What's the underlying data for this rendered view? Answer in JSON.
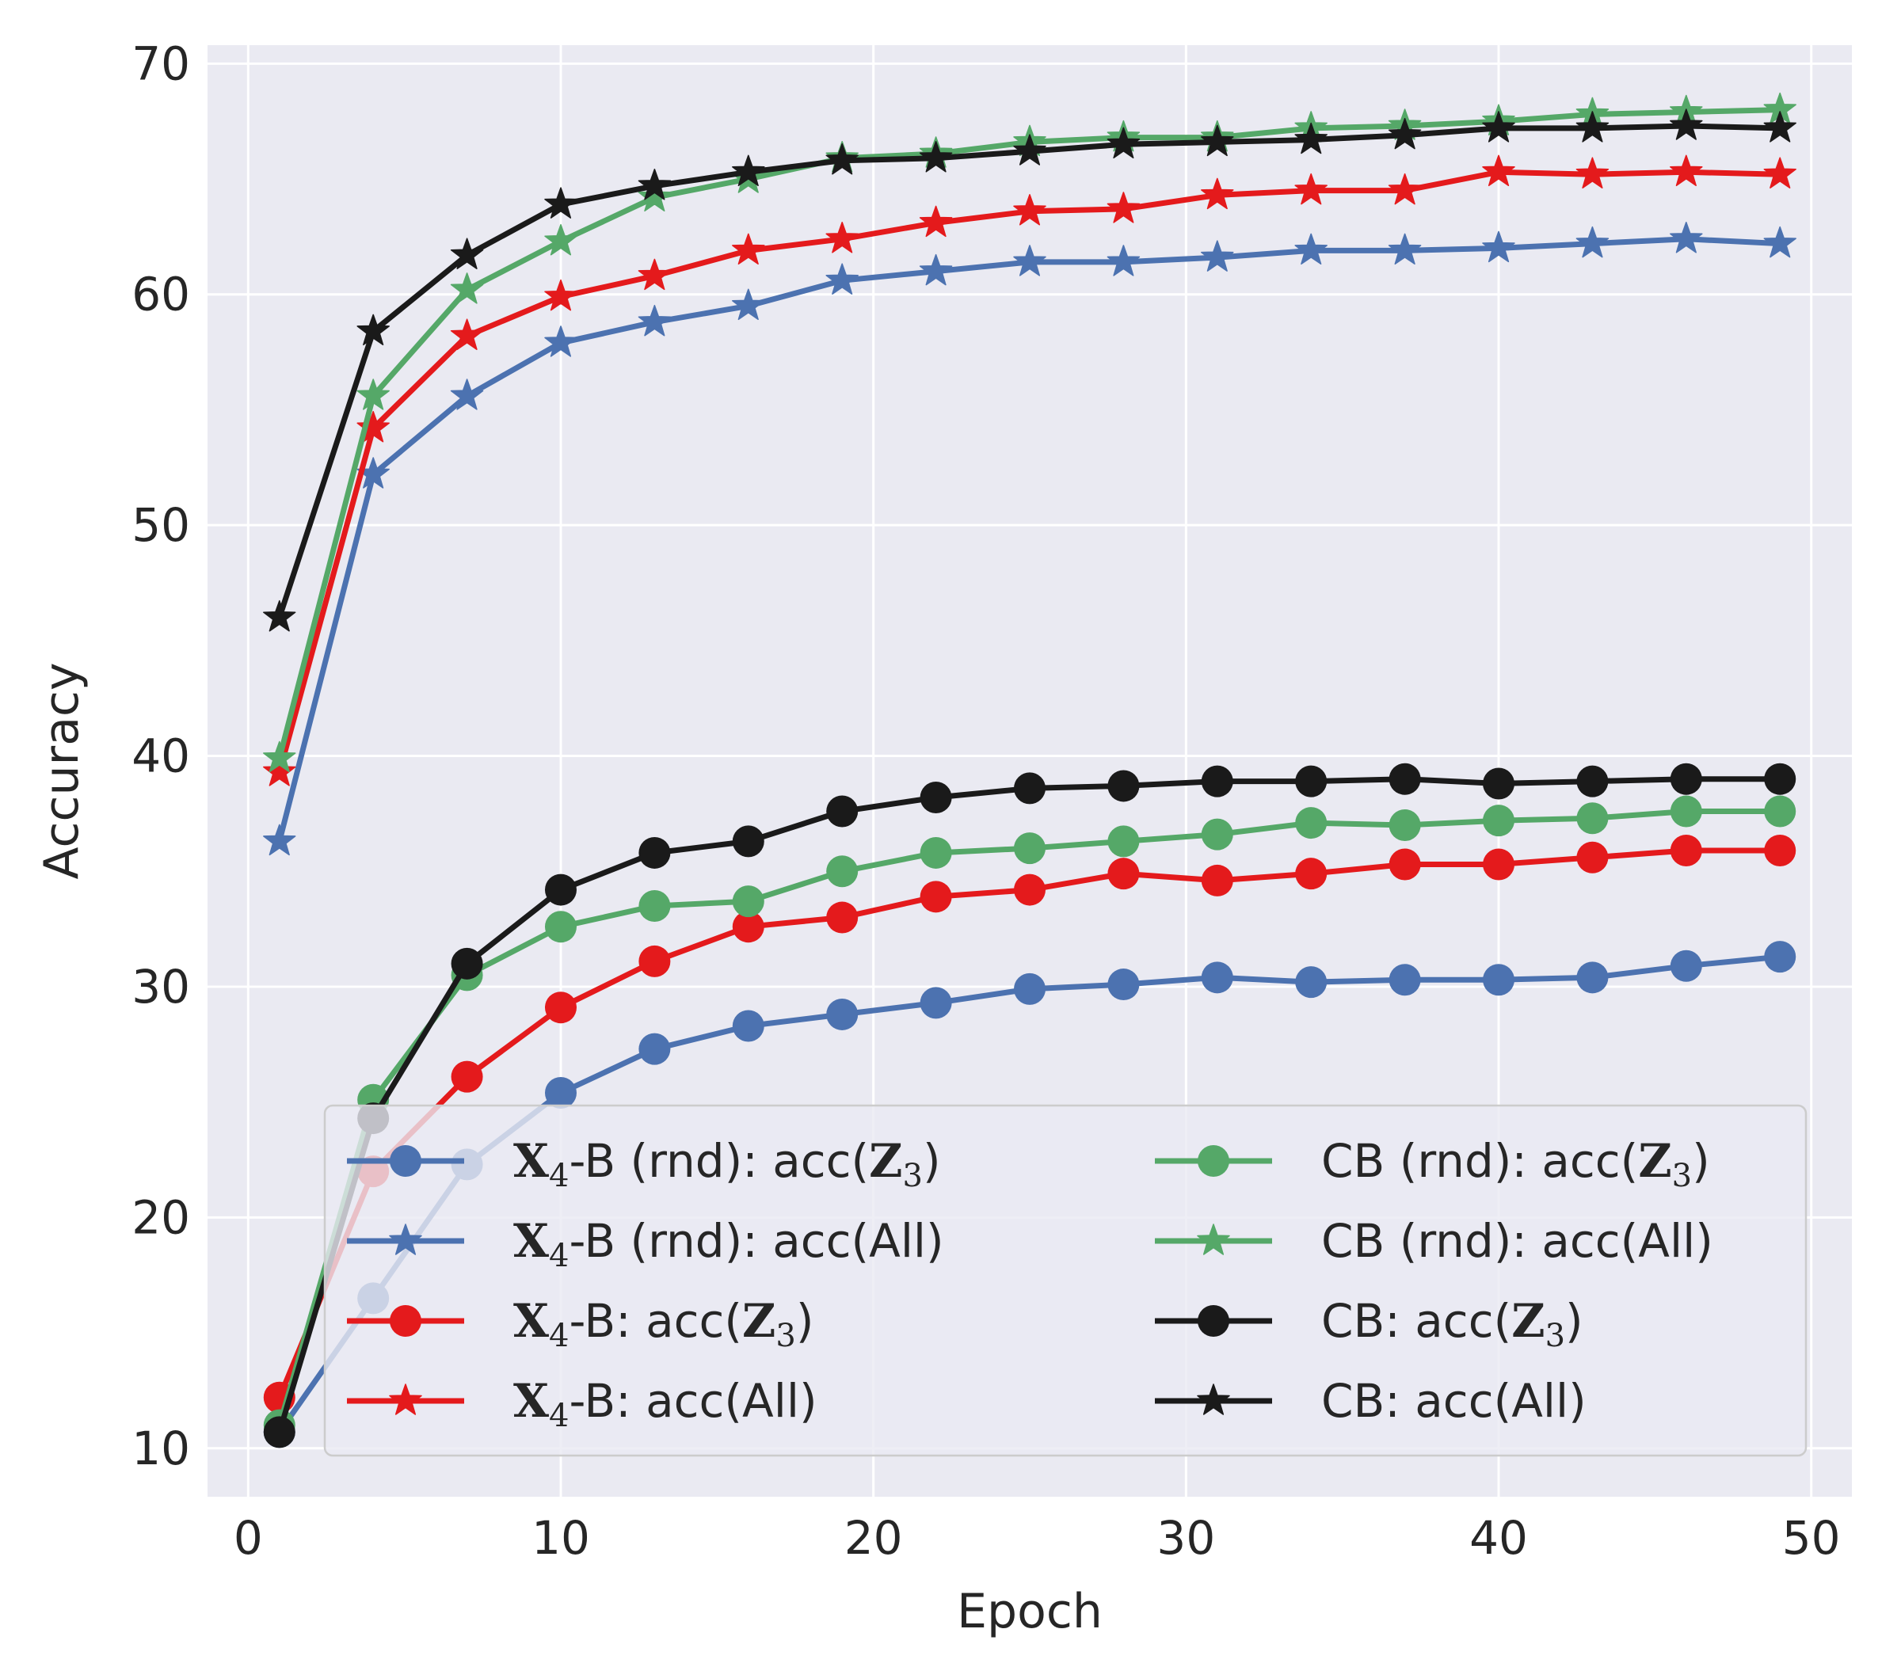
{
  "chart_data": {
    "type": "line",
    "title": "",
    "xlabel": "Epoch",
    "ylabel": "Accuracy",
    "xlim": [
      -1.3,
      51.3
    ],
    "ylim": [
      7.9,
      70.8
    ],
    "xticks": [
      0,
      10,
      20,
      30,
      40,
      50
    ],
    "yticks": [
      10,
      20,
      30,
      40,
      50,
      60,
      70
    ],
    "grid": true,
    "legend": {
      "position": "bottom-right",
      "columns": 2
    },
    "x": [
      1,
      4,
      7,
      10,
      13,
      16,
      19,
      22,
      25,
      28,
      31,
      34,
      37,
      40,
      43,
      46,
      49
    ],
    "series": [
      {
        "key": "x4b_rnd_z3",
        "name_parts": [
          "X",
          "4",
          "-B (rnd): acc(",
          "Z",
          "3",
          ")"
        ],
        "color": "#4c72b0",
        "marker": "circle",
        "values": [
          10.7,
          16.5,
          22.3,
          25.4,
          27.3,
          28.3,
          28.8,
          29.3,
          29.9,
          30.1,
          30.4,
          30.2,
          30.3,
          30.3,
          30.4,
          30.9,
          31.3
        ]
      },
      {
        "key": "x4b_rnd_all",
        "name_parts": [
          "X",
          "4",
          "-B (rnd): acc(All)"
        ],
        "color": "#4c72b0",
        "marker": "star",
        "values": [
          36.3,
          52.2,
          55.6,
          57.9,
          58.8,
          59.5,
          60.6,
          61.0,
          61.4,
          61.4,
          61.6,
          61.9,
          61.9,
          62.0,
          62.2,
          62.4,
          62.2
        ]
      },
      {
        "key": "x4b_z3",
        "name_parts": [
          "X",
          "4",
          "-B: acc(",
          "Z",
          "3",
          ")"
        ],
        "color": "#e41a1c",
        "marker": "circle",
        "values": [
          12.2,
          22.0,
          26.1,
          29.1,
          31.1,
          32.6,
          33.0,
          33.9,
          34.2,
          34.9,
          34.6,
          34.9,
          35.3,
          35.3,
          35.6,
          35.9,
          35.9
        ]
      },
      {
        "key": "x4b_all",
        "name_parts": [
          "X",
          "4",
          "-B: acc(All)"
        ],
        "color": "#e41a1c",
        "marker": "star",
        "values": [
          39.3,
          54.2,
          58.2,
          59.9,
          60.8,
          61.9,
          62.4,
          63.1,
          63.6,
          63.7,
          64.3,
          64.5,
          64.5,
          65.3,
          65.2,
          65.3,
          65.2
        ]
      },
      {
        "key": "cb_rnd_z3",
        "name_parts": [
          "CB (rnd): acc(",
          "Z",
          "3",
          ")"
        ],
        "color": "#55a868",
        "marker": "circle",
        "values": [
          11.0,
          25.1,
          30.5,
          32.6,
          33.5,
          33.7,
          35.0,
          35.8,
          36.0,
          36.3,
          36.6,
          37.1,
          37.0,
          37.2,
          37.3,
          37.6,
          37.6
        ]
      },
      {
        "key": "cb_rnd_all",
        "name_parts": [
          "CB (rnd): acc(All)"
        ],
        "color": "#55a868",
        "marker": "star",
        "values": [
          39.9,
          55.6,
          60.2,
          62.3,
          64.2,
          65.0,
          65.9,
          66.1,
          66.6,
          66.8,
          66.8,
          67.2,
          67.3,
          67.5,
          67.8,
          67.9,
          68.0
        ]
      },
      {
        "key": "cb_z3",
        "name_parts": [
          "CB: acc(",
          "Z",
          "3",
          ")"
        ],
        "color": "#1a1a1a",
        "marker": "circle",
        "values": [
          10.7,
          24.3,
          31.0,
          34.2,
          35.8,
          36.3,
          37.6,
          38.2,
          38.6,
          38.7,
          38.9,
          38.9,
          39.0,
          38.8,
          38.9,
          39.0,
          39.0
        ]
      },
      {
        "key": "cb_all",
        "name_parts": [
          "CB: acc(All)"
        ],
        "color": "#1a1a1a",
        "marker": "star",
        "values": [
          46.0,
          58.4,
          61.7,
          63.9,
          64.7,
          65.3,
          65.8,
          65.9,
          66.2,
          66.5,
          66.6,
          66.7,
          66.9,
          67.2,
          67.2,
          67.3,
          67.2
        ]
      }
    ],
    "legend_order": [
      "x4b_rnd_z3",
      "x4b_rnd_all",
      "x4b_z3",
      "x4b_all",
      "cb_rnd_z3",
      "cb_rnd_all",
      "cb_z3",
      "cb_all"
    ]
  },
  "colors": {
    "plot_background": "#eaeaf2",
    "grid": "#ffffff",
    "text": "#262626"
  }
}
